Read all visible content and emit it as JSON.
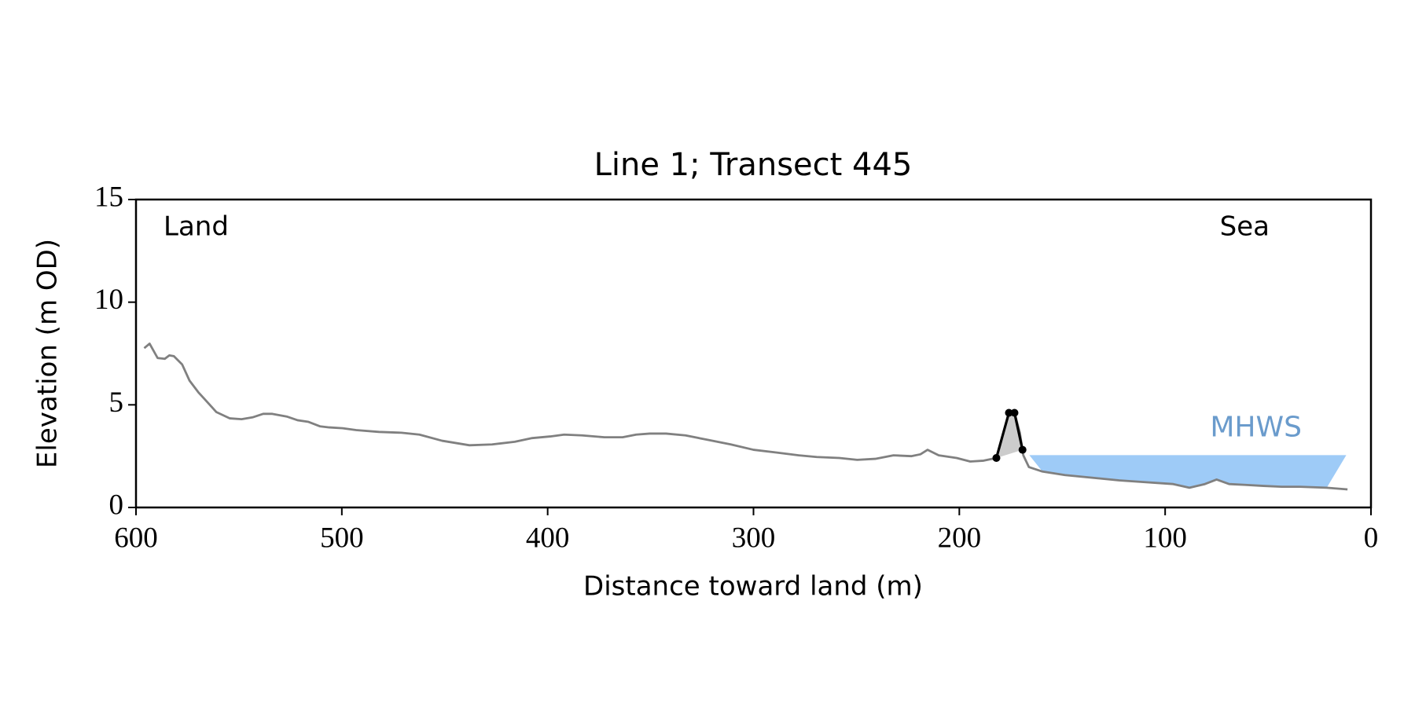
{
  "chart_data": {
    "type": "line",
    "title": "Line 1; Transect 445",
    "xlabel": "Distance toward land (m)",
    "ylabel": "Elevation (m OD)",
    "annotations": [
      "Land",
      "Sea"
    ],
    "xlim": [
      600,
      0
    ],
    "xticks": [
      600,
      500,
      400,
      300,
      200,
      100,
      0
    ],
    "ylim": [
      0,
      15
    ],
    "yticks": [
      0,
      5,
      10,
      15
    ],
    "grid": false,
    "series": [
      {
        "color": "#808080",
        "x": [
          596,
          593.4,
          589.5,
          586,
          583.8,
          581.6,
          577.6,
          574,
          569.7,
          564.5,
          561,
          554.4,
          548.7,
          543.4,
          538.2,
          533.8,
          526.8,
          521.5,
          516.2,
          510.5,
          506.1,
          499.6,
          493,
          482,
          471,
          462.3,
          451.3,
          438,
          427,
          416,
          407.5,
          398.7,
          392,
          383.3,
          372.4,
          363.6,
          357,
          350.4,
          342.5,
          333,
          322,
          311,
          300,
          289,
          278,
          269.3,
          258.3,
          249.6,
          240.8,
          232,
          223.2,
          218.9,
          215.4,
          210,
          201.3,
          194.7,
          188.2,
          182,
          178.5,
          175.4,
          173.2,
          170.6,
          168.9,
          166.2,
          159.6,
          148.7,
          135.5,
          122.4,
          109.2,
          96.1,
          88.2,
          80.7,
          75,
          68.9,
          61,
          52.2,
          43.4,
          34.6,
          21.5,
          11.4
        ],
        "values": [
          7.76,
          7.98,
          7.28,
          7.24,
          7.41,
          7.37,
          6.97,
          6.18,
          5.61,
          5.04,
          4.65,
          4.34,
          4.3,
          4.39,
          4.56,
          4.56,
          4.43,
          4.25,
          4.17,
          3.95,
          3.9,
          3.86,
          3.77,
          3.68,
          3.64,
          3.55,
          3.25,
          3.03,
          3.07,
          3.2,
          3.38,
          3.46,
          3.55,
          3.51,
          3.42,
          3.42,
          3.55,
          3.6,
          3.6,
          3.51,
          3.29,
          3.07,
          2.81,
          2.68,
          2.54,
          2.46,
          2.41,
          2.32,
          2.37,
          2.54,
          2.5,
          2.59,
          2.81,
          2.54,
          2.41,
          2.24,
          2.28,
          2.41,
          3.2,
          4.65,
          4.61,
          3.64,
          2.54,
          1.97,
          1.75,
          1.58,
          1.45,
          1.32,
          1.23,
          1.14,
          0.96,
          1.14,
          1.36,
          1.14,
          1.1,
          1.05,
          1.01,
          1.01,
          0.96,
          0.88
        ]
      },
      {
        "color": "#000000",
        "fill": "#cccccc",
        "markers": true,
        "x": [
          182,
          175.9,
          173.2,
          169.3
        ],
        "values": [
          2.41,
          4.61,
          4.61,
          2.81
        ]
      }
    ],
    "mhws": {
      "label": "MHWS",
      "level": 2.55,
      "x_range": [
        166,
        12
      ],
      "color": "#9ecbf7",
      "label_color": "#6a9bcc"
    }
  }
}
